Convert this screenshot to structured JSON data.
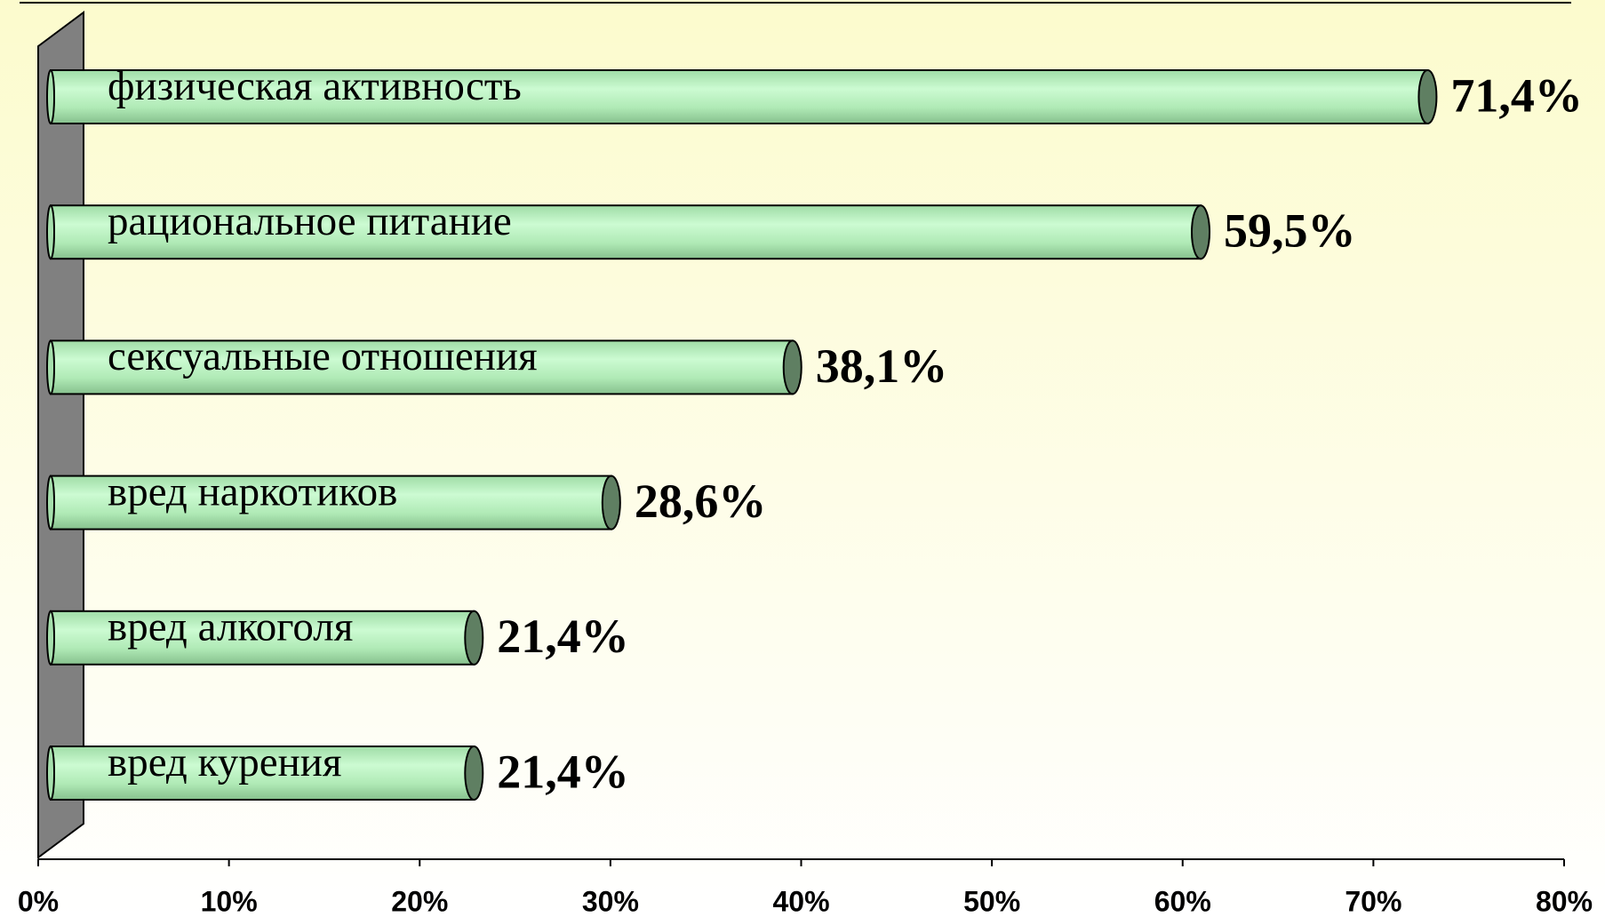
{
  "chart_data": {
    "type": "bar",
    "orientation": "horizontal",
    "categories": [
      "физическая активность",
      "рациональное питание",
      "сексуальные отношения",
      "вред наркотиков",
      "вред алкоголя",
      "вред курения"
    ],
    "values": [
      71.4,
      59.5,
      38.1,
      28.6,
      21.4,
      21.4
    ],
    "value_labels": [
      "71,4%",
      "59,5%",
      "38,1%",
      "28,6%",
      "21,4%",
      "21,4%"
    ],
    "color": "#b9f0bf",
    "xlim": [
      0,
      80
    ],
    "xticks": [
      {
        "value": 0,
        "label": "0%"
      },
      {
        "value": 10,
        "label": "10%"
      },
      {
        "value": 20,
        "label": "20%"
      },
      {
        "value": 30,
        "label": "30%"
      },
      {
        "value": 40,
        "label": "40%"
      },
      {
        "value": 50,
        "label": "50%"
      },
      {
        "value": 60,
        "label": "60%"
      },
      {
        "value": 70,
        "label": "70%"
      },
      {
        "value": 80,
        "label": "80%"
      }
    ]
  }
}
